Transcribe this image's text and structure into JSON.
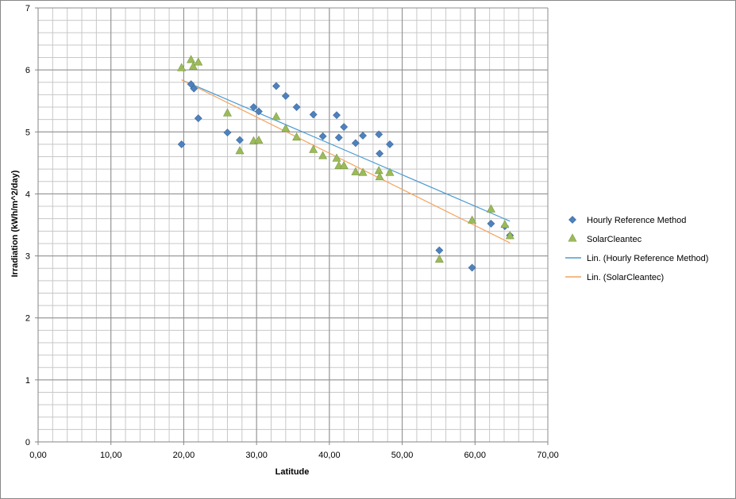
{
  "chart_data": {
    "type": "scatter",
    "title": "",
    "xlabel": "Latitude",
    "ylabel": "Irradiation (kWh/m^2/day)",
    "xlim": [
      0,
      70
    ],
    "ylim": [
      0,
      7
    ],
    "x_ticks": [
      "0,00",
      "10,00",
      "20,00",
      "30,00",
      "40,00",
      "50,00",
      "60,00",
      "70,00"
    ],
    "y_ticks": [
      "0",
      "1",
      "2",
      "3",
      "4",
      "5",
      "6",
      "7"
    ],
    "grid": true,
    "minor_grid": true,
    "legend_position": "right",
    "series": [
      {
        "name": "Hourly Reference Method",
        "marker": "diamond",
        "color": "#4F81BD",
        "points": [
          [
            19.7,
            4.8
          ],
          [
            21.0,
            5.77
          ],
          [
            21.4,
            5.7
          ],
          [
            22.0,
            5.22
          ],
          [
            26.0,
            4.99
          ],
          [
            27.7,
            4.87
          ],
          [
            29.6,
            5.4
          ],
          [
            30.3,
            5.33
          ],
          [
            32.7,
            5.74
          ],
          [
            34.0,
            5.58
          ],
          [
            35.5,
            5.4
          ],
          [
            37.8,
            5.28
          ],
          [
            39.1,
            4.93
          ],
          [
            41.0,
            5.27
          ],
          [
            41.3,
            4.91
          ],
          [
            42.0,
            5.08
          ],
          [
            43.6,
            4.82
          ],
          [
            44.6,
            4.94
          ],
          [
            46.8,
            4.96
          ],
          [
            46.9,
            4.65
          ],
          [
            48.3,
            4.8
          ],
          [
            55.1,
            3.09
          ],
          [
            59.6,
            2.81
          ],
          [
            62.2,
            3.52
          ],
          [
            64.1,
            3.48
          ],
          [
            64.8,
            3.33
          ]
        ]
      },
      {
        "name": "SolarCleantec",
        "marker": "triangle",
        "color": "#9BBB59",
        "points": [
          [
            19.7,
            6.04
          ],
          [
            21.0,
            6.17
          ],
          [
            21.3,
            6.06
          ],
          [
            22.0,
            6.13
          ],
          [
            26.0,
            5.31
          ],
          [
            27.7,
            4.7
          ],
          [
            29.6,
            4.86
          ],
          [
            30.3,
            4.87
          ],
          [
            32.7,
            5.25
          ],
          [
            34.0,
            5.06
          ],
          [
            35.5,
            4.92
          ],
          [
            37.8,
            4.72
          ],
          [
            39.1,
            4.62
          ],
          [
            41.0,
            4.58
          ],
          [
            41.3,
            4.46
          ],
          [
            42.0,
            4.46
          ],
          [
            43.6,
            4.36
          ],
          [
            44.6,
            4.35
          ],
          [
            46.8,
            4.38
          ],
          [
            46.9,
            4.28
          ],
          [
            48.3,
            4.35
          ],
          [
            55.1,
            2.95
          ],
          [
            59.6,
            3.58
          ],
          [
            62.2,
            3.76
          ],
          [
            64.1,
            3.51
          ],
          [
            64.8,
            3.33
          ]
        ]
      }
    ],
    "trendlines": [
      {
        "name": "Lin. (Hourly Reference Method)",
        "color": "#4A9BD1",
        "x": [
          19.7,
          64.8
        ],
        "y": [
          5.84,
          3.56
        ]
      },
      {
        "name": "Lin. (SolarCleantec)",
        "color": "#F4A460",
        "x": [
          19.7,
          64.8
        ],
        "y": [
          5.84,
          3.21
        ]
      }
    ]
  }
}
